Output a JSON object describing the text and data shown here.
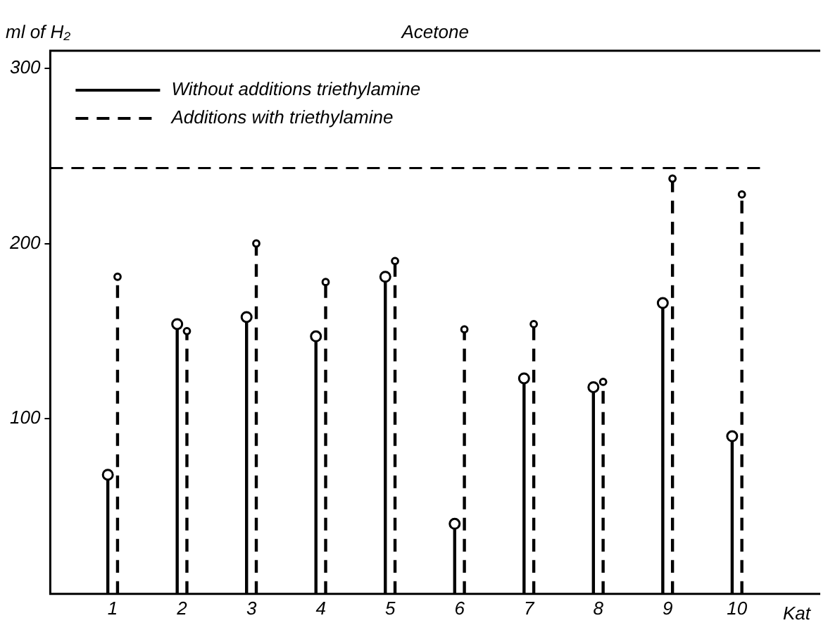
{
  "chart_data": {
    "type": "lollipop",
    "title": "Acetone",
    "ylabel": "ml of H₂",
    "xlabel": "Kat",
    "categories": [
      "1",
      "2",
      "3",
      "4",
      "5",
      "6",
      "7",
      "8",
      "9",
      "10"
    ],
    "series": [
      {
        "name": "Without additions triethylamine",
        "color": "#000000",
        "line_style": "solid",
        "marker": "circle",
        "values": [
          68,
          154,
          158,
          147,
          181,
          40,
          123,
          118,
          166,
          90
        ]
      },
      {
        "name": "Additions with triethylamine",
        "color": "#000000",
        "line_style": "dashed",
        "marker": "circle",
        "values": [
          181,
          150,
          200,
          178,
          190,
          151,
          154,
          121,
          237,
          228
        ]
      }
    ],
    "ylim": [
      0,
      310
    ],
    "yticks": [
      100,
      200,
      300
    ],
    "ref_lines": [
      {
        "axis": "y",
        "value": 243,
        "line_style": "dashed",
        "color": "#000000"
      }
    ],
    "legend": "top left"
  }
}
